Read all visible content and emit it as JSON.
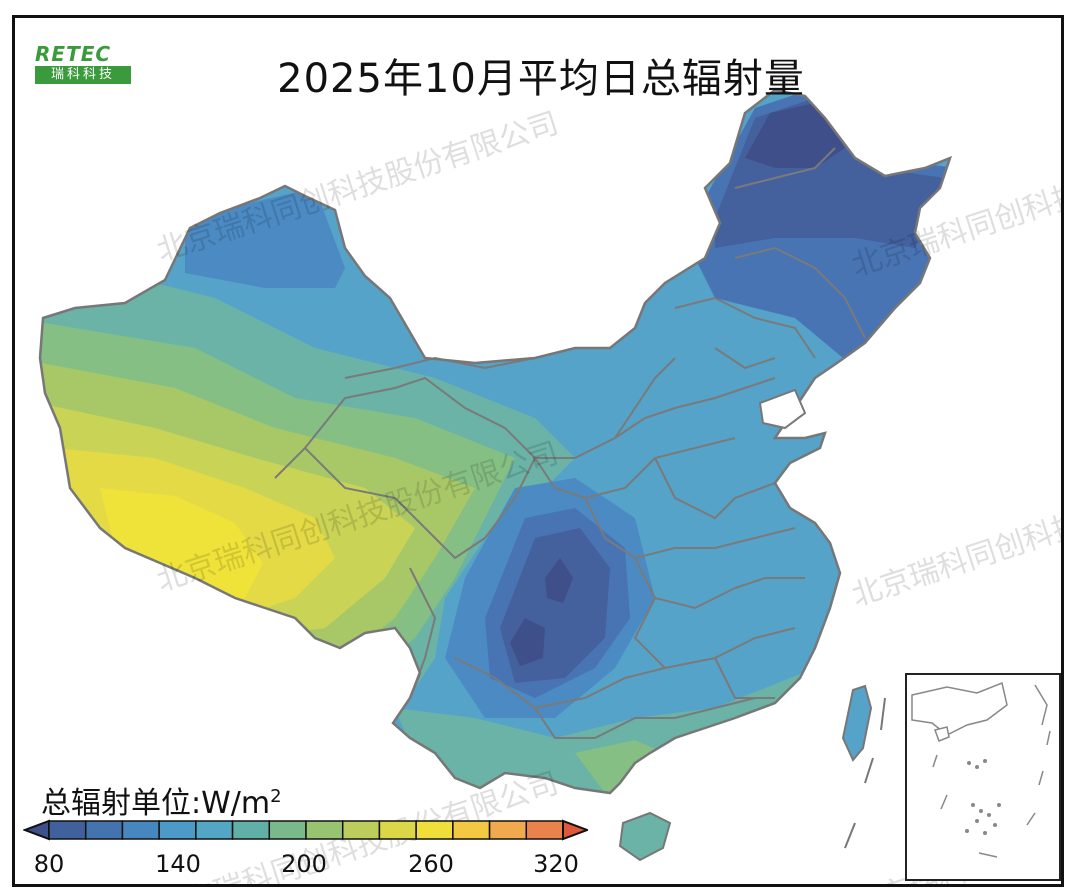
{
  "title": "2025年10月平均日总辐射量",
  "logo": {
    "top": "RETEC",
    "bottom": "瑞科科技"
  },
  "watermark": "北京瑞科同创科技股份有限公司",
  "legend": {
    "title": "总辐射单位:W/m",
    "superscript": "2",
    "ticks": [
      "80",
      "140",
      "200",
      "260",
      "320"
    ],
    "colors": [
      "#3f4f8a",
      "#41619c",
      "#4573b0",
      "#4787bf",
      "#4b9ac8",
      "#52a7c4",
      "#60b0a8",
      "#79b98c",
      "#98c472",
      "#bccd5c",
      "#dcd748",
      "#f0de3a",
      "#f3c843",
      "#f0a94c",
      "#e9824d",
      "#e0583a"
    ]
  },
  "map_colors": {
    "c100": "#3f4f8a",
    "c115": "#44609d",
    "c130": "#4874b3",
    "c145": "#4b8ac3",
    "c160": "#55a3c8",
    "c175": "#6ab3a6",
    "c190": "#86bf84",
    "c205": "#a8c868",
    "c220": "#c9d356",
    "c235": "#e3da45",
    "c250": "#efe33a"
  }
}
